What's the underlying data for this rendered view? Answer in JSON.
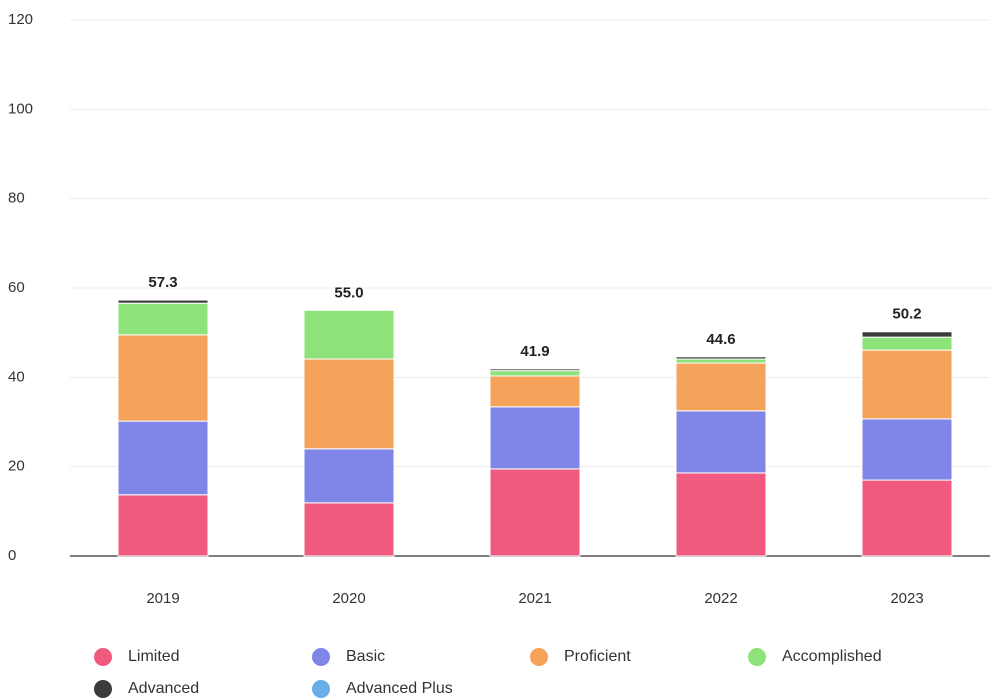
{
  "chart_data": {
    "type": "stacked_bar",
    "categories": [
      "2019",
      "2020",
      "2021",
      "2022",
      "2023"
    ],
    "series": [
      {
        "name": "Limited",
        "color": "#f05a7e",
        "values": [
          13.7,
          11.9,
          19.5,
          18.6,
          17.0
        ]
      },
      {
        "name": "Basic",
        "color": "#7f86e8",
        "values": [
          16.5,
          12.1,
          13.9,
          13.9,
          13.7
        ]
      },
      {
        "name": "Proficient",
        "color": "#f5a25a",
        "values": [
          19.3,
          20.1,
          6.9,
          10.7,
          15.4
        ]
      },
      {
        "name": "Accomplished",
        "color": "#8ee27a",
        "values": [
          7.1,
          10.9,
          1.2,
          0.9,
          2.9
        ]
      },
      {
        "name": "Advanced",
        "color": "#3b3b3b",
        "values": [
          0.7,
          0,
          0.4,
          0.5,
          1.2
        ]
      },
      {
        "name": "Advanced Plus",
        "color": "#6aaee8",
        "values": [
          0,
          0,
          0,
          0,
          0
        ]
      }
    ],
    "totals": [
      57.3,
      55.0,
      41.9,
      44.6,
      50.2
    ],
    "total_labels": [
      "57.3",
      "55.0",
      "41.9",
      "44.6",
      "50.2"
    ],
    "ylim": [
      0,
      120
    ],
    "yticks": [
      0,
      20,
      40,
      60,
      80,
      100,
      120
    ],
    "grid": true
  }
}
